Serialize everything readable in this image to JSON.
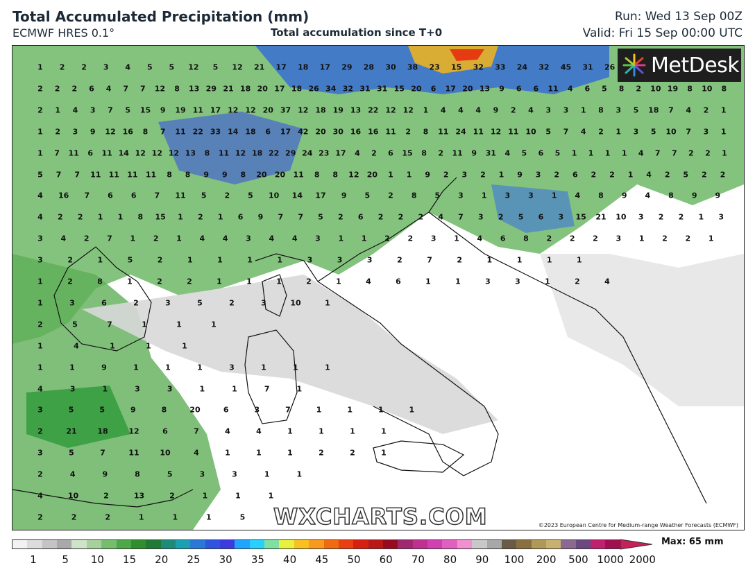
{
  "header": {
    "title": "Total Accumulated Precipitation (mm)",
    "subtitle": "ECMWF HRES 0.1°",
    "center_label": "Total accumulation since T+0",
    "run": "Run: Wed 13 Sep 00Z",
    "valid": "Valid: Fri 15 Sep 00:00 UTC"
  },
  "map": {
    "logo": "MetDesk",
    "watermark": "WXCHARTS.COM",
    "copyright": "©2023 European Centre for Medium-range Weather Forecasts (ECMWF)",
    "value_rows": [
      "1 2 2 3 4 5 5 12 5 12 21 17 18 17 29 28 30 38 23 15 32 33 24 32 45 31 26 17 10 13 3 3",
      "2 2 2 6 4 7 7 12 8 13 29 21 18 20 17 18 26 34 32 31 31 15 20 6 17 20 13 9 6 6 11 4 6 5 8 2 10 19 8 10 8",
      "2 1 4 3 7 5 15 9 19 11 17 12 12 20 37 12 18 19 13 22 12 12 1 4 4 4 9 2 4 3 3 1 8 3 5 18 7 4 2 1",
      "1 2 3 9 12 16 8 7 11 22 33 14 18 6 17 42 20 30 16 16 11 2 8 11 24 11 12 11 10 5 7 4 2 1 3 5 10 7 3 1",
      "1 7 11 6 11 14 12 12 12 13 8 11 12 18 22 29 24 23 17 4 2 6 15 8 2 11 9 31 4 5 6 5 1 1 1 1 4 7 7 2 2 1",
      "5 7 7 11 11 11 11 8 8 9 9 8 20 20 11 8 8 12 20 1 1 9 2 3 2 1 9 3 2 6 2 2 1 4 2 5 2 2",
      "4 16 7 6 6 7 11 5 2 5 10 14 17 9 5 2 8 5 3 1 3 3 1 4 8 9 4 8 9 9",
      "4 2 2 1 1 8 15 1 2 1 6 9 7 7 5 2 6 2 2 2 4 7 3 2 5 6 3 15 21 10 3 2 2 1 3",
      "3 4 2 7 1 2 1 4 4 3 4 4 3 1 1 2 2 3 1 4 6 8 2 2 2 3 1 2 2 1",
      "3 2 1 5 2 1 1 1 1 3 3 3 2 7 2 1 1 1 1",
      "1 2 8 1 2 2 1 1 1 2 1 4 6 1 1 3 3 1 2 4",
      "1 3 6 2 3 5 2 3 10 1",
      "2 5 7 1 1 1",
      "1 4 1 1 1",
      "1 1 9 1 1 1 3 1 1 1",
      "4 3 1 3 3 1 1 7 1",
      "3 5 5 9 8 20 6 3 7 1 1 1 1",
      "2 21 18 12 6 7 4 4 1 1 1 1",
      "3 5 7 11 10 4 1 1 1 2 2 1",
      "2 4 9 8 5 3 3 1 1",
      "4 10 2 13 2 1 1 1",
      "2 2 2 1 1 1 5"
    ]
  },
  "colorbar": {
    "ticks": [
      "1",
      "5",
      "10",
      "15",
      "20",
      "25",
      "30",
      "35",
      "40",
      "45",
      "50",
      "60",
      "70",
      "80",
      "90",
      "100",
      "200",
      "500",
      "1000",
      "2000"
    ],
    "max_label": "Max: 65 mm",
    "colors": [
      "#f2f2f2",
      "#dcdcdc",
      "#c4c4c4",
      "#a9a9a9",
      "#cfe3c9",
      "#a6d19d",
      "#78bd6e",
      "#4ea84a",
      "#2f8f2f",
      "#207a36",
      "#1e8a7a",
      "#1aa0b0",
      "#2a79d6",
      "#2d55e0",
      "#3b3be0",
      "#1fa5ff",
      "#27d0ff",
      "#7fe0a0",
      "#e8f040",
      "#f8c020",
      "#f89a20",
      "#f06a10",
      "#e84010",
      "#d82010",
      "#b81818",
      "#980a20",
      "#a02870",
      "#c03090",
      "#d040b0",
      "#e060c0",
      "#f090d0",
      "#c8c8c8",
      "#a8a8a8",
      "#6a5a48",
      "#8a7040",
      "#b09858",
      "#c8b070",
      "#8a6a90",
      "#6a4880",
      "#c02070",
      "#a01050"
    ]
  }
}
